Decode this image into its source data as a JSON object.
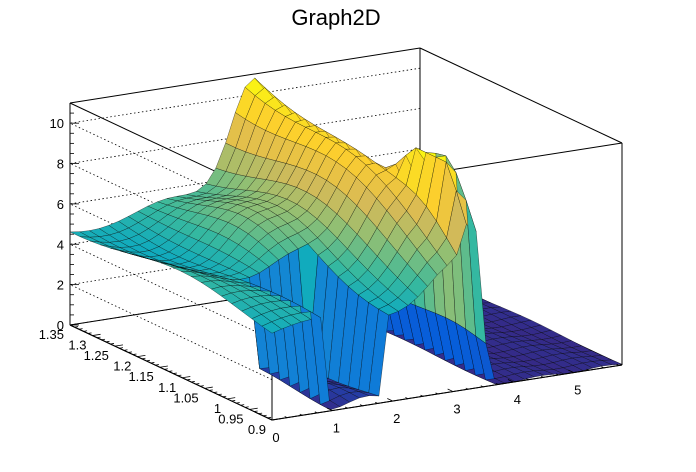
{
  "chart_data": {
    "type": "surface3d",
    "title": "Graph2D",
    "x_ticks": [
      "0",
      "1",
      "2",
      "3",
      "4",
      "5"
    ],
    "y_ticks": [
      "0.9",
      "0.95",
      "1",
      "1.05",
      "1.1",
      "1.15",
      "1.2",
      "1.25",
      "1.3",
      "1.35"
    ],
    "z_ticks": [
      "0",
      "2",
      "4",
      "6",
      "8",
      "10"
    ],
    "xlim": [
      0,
      5.8
    ],
    "ylim": [
      0.9,
      1.35
    ],
    "zlim": [
      0,
      11
    ],
    "grid": true,
    "palette": [
      "#352a87",
      "#0363e1",
      "#1485d4",
      "#06a7c6",
      "#38b99e",
      "#92bf73",
      "#d9ba56",
      "#fcce2e",
      "#f9fb0e"
    ],
    "mesh_color": "#000000",
    "surface": {
      "x_range": [
        0,
        5.8
      ],
      "y_range": [
        0.9,
        1.35
      ],
      "nx": 36,
      "ny": 20,
      "ridge_peak_z": 10.5,
      "mid_peak_z": 6.5,
      "baseline_z": 4.3
    }
  }
}
